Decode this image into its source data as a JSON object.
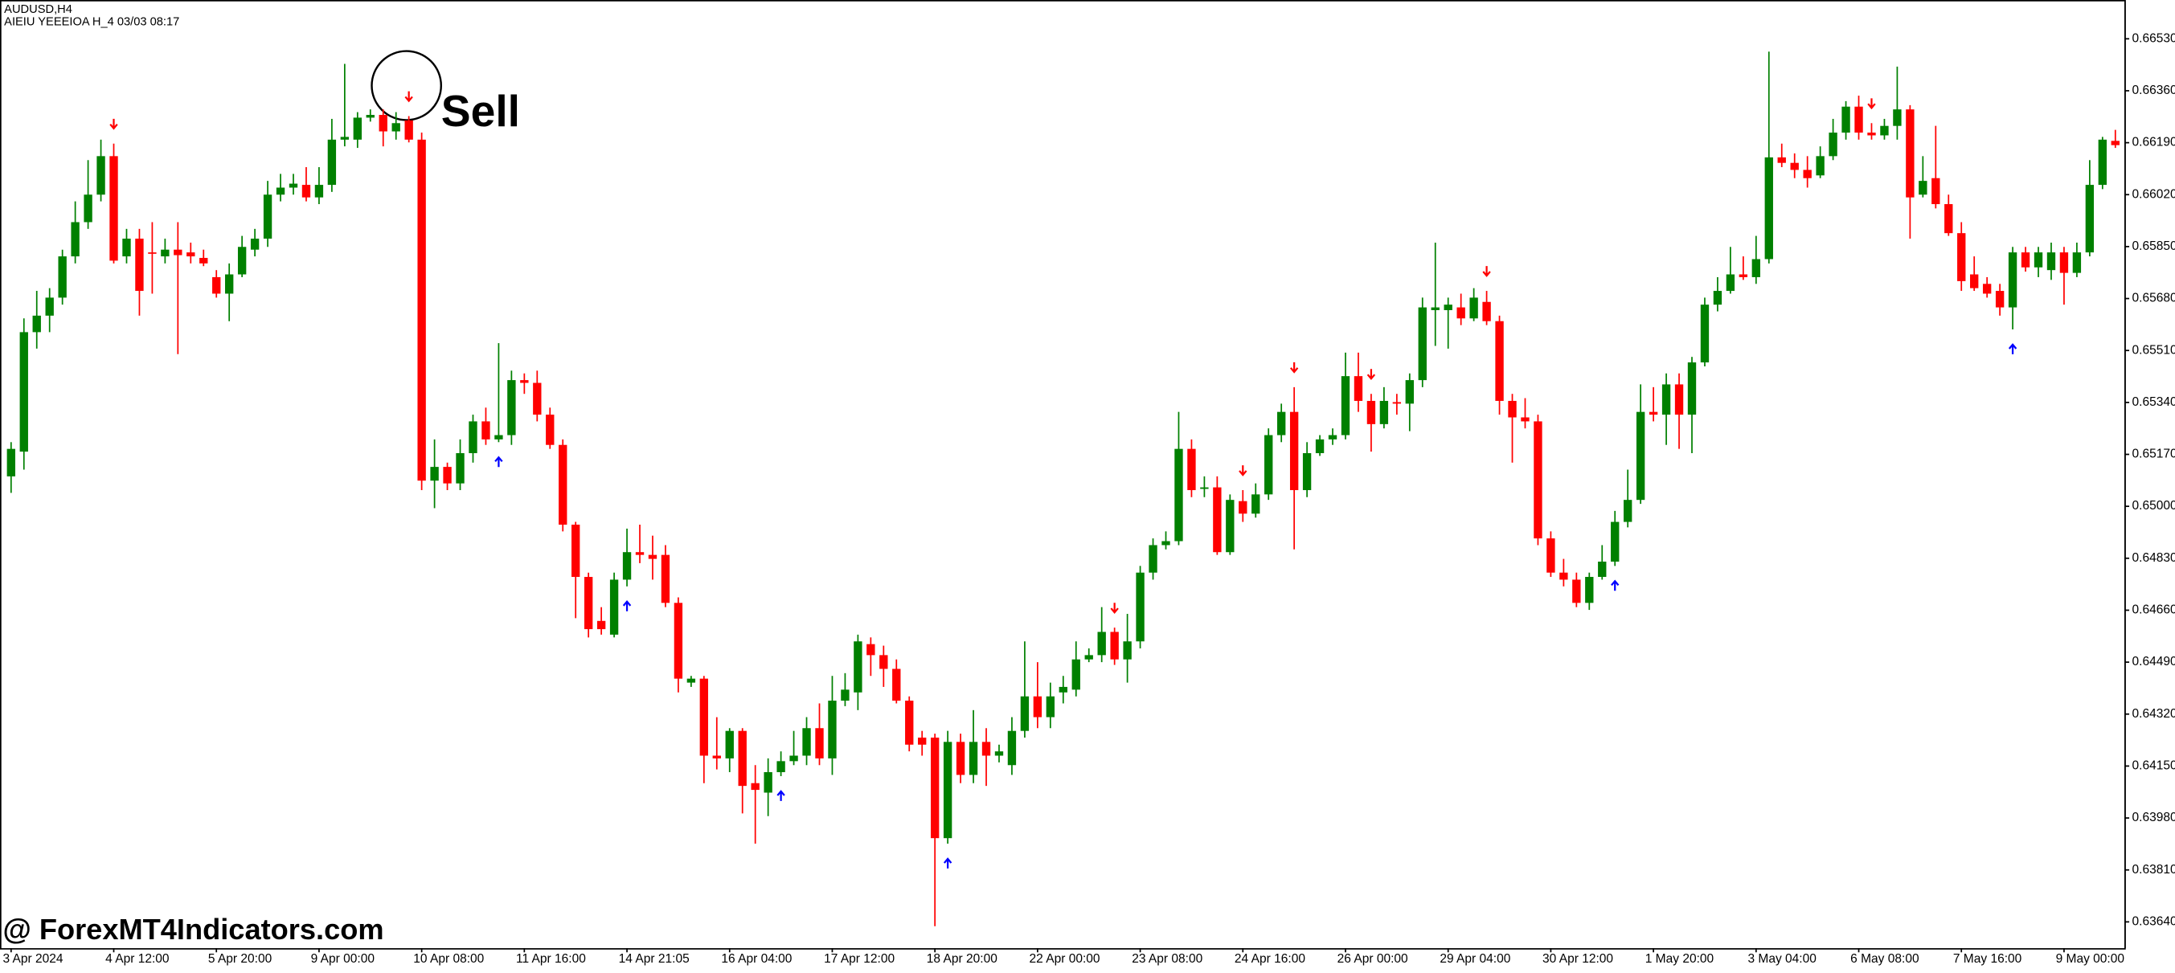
{
  "chart_data": {
    "type": "candlestick",
    "title": "AUDUSD,H4",
    "subtitle": "AIEIU YEEEIOA H_4 03/03 08:17",
    "annotation": "Sell",
    "watermark": "@ ForexMT4Indicators.com",
    "up_color": "#008000",
    "down_color": "#ff0000",
    "sell_color": "#ff0000",
    "buy_color": "#0000ff",
    "ylim": [
      0.63554,
      0.66657
    ],
    "yticks": [
      {
        "value": 0.6653,
        "label": "0.66530"
      },
      {
        "value": 0.6636,
        "label": "0.66360"
      },
      {
        "value": 0.6619,
        "label": "0.66190"
      },
      {
        "value": 0.6602,
        "label": "0.66020"
      },
      {
        "value": 0.6585,
        "label": "0.65850"
      },
      {
        "value": 0.6568,
        "label": "0.65680"
      },
      {
        "value": 0.6551,
        "label": "0.65510"
      },
      {
        "value": 0.6534,
        "label": "0.65340"
      },
      {
        "value": 0.6517,
        "label": "0.65170"
      },
      {
        "value": 0.65,
        "label": "0.65000"
      },
      {
        "value": 0.6483,
        "label": "0.64830"
      },
      {
        "value": 0.6466,
        "label": "0.64660"
      },
      {
        "value": 0.6449,
        "label": "0.64490"
      },
      {
        "value": 0.6432,
        "label": "0.64320"
      },
      {
        "value": 0.6415,
        "label": "0.64150"
      },
      {
        "value": 0.6398,
        "label": "0.63980"
      },
      {
        "value": 0.6381,
        "label": "0.63810"
      },
      {
        "value": 0.6364,
        "label": "0.63640"
      }
    ],
    "categories": [
      "3 Apr 2024",
      null,
      null,
      null,
      null,
      null,
      null,
      null,
      "4 Apr 12:00",
      null,
      null,
      null,
      null,
      null,
      null,
      null,
      "5 Apr 20:00",
      null,
      null,
      null,
      null,
      null,
      null,
      null,
      "9 Apr 00:00",
      null,
      null,
      null,
      null,
      null,
      null,
      null,
      "10 Apr 08:00",
      null,
      null,
      null,
      null,
      null,
      null,
      null,
      "11 Apr 16:00",
      null,
      null,
      null,
      null,
      null,
      null,
      null,
      "14 Apr 21:05",
      null,
      null,
      null,
      null,
      null,
      null,
      null,
      "16 Apr 04:00",
      null,
      null,
      null,
      null,
      null,
      null,
      null,
      "17 Apr 12:00",
      null,
      null,
      null,
      null,
      null,
      null,
      null,
      "18 Apr 20:00",
      null,
      null,
      null,
      null,
      null,
      null,
      null,
      "22 Apr 00:00",
      null,
      null,
      null,
      null,
      null,
      null,
      null,
      "23 Apr 08:00",
      null,
      null,
      null,
      null,
      null,
      null,
      null,
      "24 Apr 16:00",
      null,
      null,
      null,
      null,
      null,
      null,
      null,
      "26 Apr 00:00",
      null,
      null,
      null,
      null,
      null,
      null,
      null,
      "29 Apr 04:00",
      null,
      null,
      null,
      null,
      null,
      null,
      null,
      "30 Apr 12:00",
      null,
      null,
      null,
      null,
      null,
      null,
      null,
      "1 May 20:00",
      null,
      null,
      null,
      null,
      null,
      null,
      null,
      "3 May 04:00",
      null,
      null,
      null,
      null,
      null,
      null,
      null,
      "6 May 08:00",
      null,
      null,
      null,
      null,
      null,
      null,
      null,
      "7 May 16:00",
      null,
      null,
      null,
      null,
      null,
      null,
      null,
      "9 May 00:00",
      null,
      null,
      null,
      null
    ],
    "open": [
      0.65098,
      0.65179,
      0.6557,
      0.65624,
      0.65683,
      0.65818,
      0.6593,
      0.6602,
      0.66146,
      0.65818,
      0.65876,
      0.65831,
      0.65818,
      0.6584,
      0.65831,
      0.65813,
      0.6575,
      0.65696,
      0.65759,
      0.6584,
      0.65876,
      0.6602,
      0.66043,
      0.66052,
      0.66011,
      0.66052,
      0.662,
      0.662,
      0.66272,
      0.66281,
      0.66227,
      0.66263,
      0.662,
      0.65084,
      0.65129,
      0.65075,
      0.65174,
      0.65278,
      0.65219,
      0.65233,
      0.65413,
      0.65404,
      0.653,
      0.65201,
      0.6494,
      0.64769,
      0.64625,
      0.6458,
      0.6476,
      0.6485,
      0.64841,
      0.64841,
      0.64684,
      0.64423,
      0.64436,
      0.64184,
      0.64175,
      0.64265,
      0.64094,
      0.64063,
      0.6413,
      0.64166,
      0.64184,
      0.64274,
      0.64175,
      0.64364,
      0.64391,
      0.64549,
      0.64513,
      0.64468,
      0.64364,
      0.64243,
      0.64243,
      0.63914,
      0.64229,
      0.64121,
      0.64229,
      0.64184,
      0.64153,
      0.64265,
      0.64378,
      0.6431,
      0.64391,
      0.644,
      0.64499,
      0.64513,
      0.64589,
      0.64499,
      0.64558,
      0.64783,
      0.64873,
      0.64886,
      0.65188,
      0.65057,
      0.65062,
      0.6485,
      0.65017,
      0.64976,
      0.65039,
      0.65233,
      0.65309,
      0.65053,
      0.65174,
      0.65219,
      0.65233,
      0.65426,
      0.65345,
      0.65269,
      0.65341,
      0.65336,
      0.65413,
      0.65642,
      0.65642,
      0.65651,
      0.65615,
      0.65669,
      0.65606,
      0.65345,
      0.65291,
      0.65278,
      0.64895,
      0.64783,
      0.6476,
      0.64684,
      0.64769,
      0.64819,
      0.64949,
      0.65021,
      0.65309,
      0.653,
      0.65399,
      0.653,
      0.65471,
      0.6566,
      0.65705,
      0.65759,
      0.6575,
      0.65809,
      0.66142,
      0.66124,
      0.66101,
      0.66083,
      0.66146,
      0.66223,
      0.66308,
      0.66223,
      0.66214,
      0.66245,
      0.66299,
      0.6602,
      0.66074,
      0.65989,
      0.65894,
      0.65759,
      0.65728,
      0.65705,
      0.65651,
      0.65831,
      0.65782,
      0.65773,
      0.65831,
      0.65764,
      0.65831,
      0.66052,
      0.66196
    ],
    "high": [
      0.6521,
      0.65615,
      0.65705,
      0.65714,
      0.6584,
      0.65998,
      0.66133,
      0.662,
      0.66187,
      0.65908,
      0.65908,
      0.6593,
      0.65876,
      0.6593,
      0.65863,
      0.6584,
      0.65773,
      0.65795,
      0.65885,
      0.65908,
      0.66065,
      0.66088,
      0.66088,
      0.6611,
      0.6611,
      0.66268,
      0.66448,
      0.6629,
      0.66299,
      0.66299,
      0.6629,
      0.66277,
      0.66223,
      0.65219,
      0.65143,
      0.65219,
      0.653,
      0.65323,
      0.65534,
      0.65444,
      0.65435,
      0.65444,
      0.65323,
      0.65219,
      0.64949,
      0.64783,
      0.6467,
      0.64783,
      0.64927,
      0.6494,
      0.64904,
      0.64873,
      0.64702,
      0.64445,
      0.64445,
      0.6431,
      0.64274,
      0.64274,
      0.64153,
      0.64175,
      0.64198,
      0.64265,
      0.6431,
      0.64355,
      0.64445,
      0.64454,
      0.6458,
      0.64571,
      0.64544,
      0.64499,
      0.64378,
      0.64265,
      0.64256,
      0.64265,
      0.64256,
      0.64333,
      0.64274,
      0.6422,
      0.6431,
      0.64558,
      0.6449,
      0.64423,
      0.64445,
      0.64558,
      0.64535,
      0.6467,
      0.64603,
      0.64648,
      0.64805,
      0.64895,
      0.64918,
      0.65309,
      0.65219,
      0.65098,
      0.65098,
      0.65039,
      0.65053,
      0.65075,
      0.65255,
      0.65336,
      0.6539,
      0.6521,
      0.65233,
      0.65255,
      0.65503,
      0.65503,
      0.65368,
      0.6539,
      0.65368,
      0.65435,
      0.65683,
      0.65863,
      0.65683,
      0.65696,
      0.65714,
      0.65705,
      0.65624,
      0.65368,
      0.65354,
      0.653,
      0.64918,
      0.64828,
      0.64783,
      0.64783,
      0.64873,
      0.64985,
      0.6512,
      0.65399,
      0.6539,
      0.65435,
      0.65435,
      0.65489,
      0.65683,
      0.6575,
      0.65849,
      0.65818,
      0.65885,
      0.66488,
      0.66187,
      0.66155,
      0.66146,
      0.66178,
      0.66268,
      0.66326,
      0.66344,
      0.66254,
      0.66268,
      0.66439,
      0.66313,
      0.66146,
      0.66245,
      0.6602,
      0.6593,
      0.65818,
      0.6575,
      0.65728,
      0.65849,
      0.65849,
      0.65849,
      0.65863,
      0.65849,
      0.65863,
      0.66133,
      0.66209,
      0.66232
    ],
    "low": [
      0.65044,
      0.6512,
      0.65516,
      0.6557,
      0.6566,
      0.65795,
      0.65908,
      0.65998,
      0.65795,
      0.65795,
      0.65624,
      0.65696,
      0.65795,
      0.65498,
      0.65795,
      0.65786,
      0.65683,
      0.65606,
      0.6575,
      0.65818,
      0.65849,
      0.65998,
      0.6602,
      0.65998,
      0.65989,
      0.66029,
      0.66178,
      0.66173,
      0.66259,
      0.66178,
      0.662,
      0.66191,
      0.65053,
      0.64994,
      0.65053,
      0.65053,
      0.65143,
      0.65201,
      0.6521,
      0.65201,
      0.65368,
      0.65278,
      0.65188,
      0.64918,
      0.64634,
      0.64571,
      0.6458,
      0.64571,
      0.64738,
      0.64814,
      0.6476,
      0.6467,
      0.64391,
      0.64409,
      0.64094,
      0.64139,
      0.6413,
      0.63995,
      0.63896,
      0.63986,
      0.64117,
      0.64153,
      0.64153,
      0.64153,
      0.64121,
      0.64346,
      0.64333,
      0.64445,
      0.64409,
      0.64355,
      0.64198,
      0.64184,
      0.63626,
      0.63896,
      0.64094,
      0.64094,
      0.64085,
      0.64162,
      0.64121,
      0.64243,
      0.64274,
      0.64274,
      0.64355,
      0.64378,
      0.6449,
      0.6449,
      0.64481,
      0.64423,
      0.64535,
      0.6476,
      0.64859,
      0.64873,
      0.6503,
      0.6503,
      0.64841,
      0.64841,
      0.64949,
      0.64963,
      0.65021,
      0.6521,
      0.64859,
      0.6503,
      0.65165,
      0.65201,
      0.65219,
      0.65309,
      0.65179,
      0.65255,
      0.653,
      0.65246,
      0.6539,
      0.65525,
      0.65516,
      0.65593,
      0.65606,
      0.65593,
      0.653,
      0.65143,
      0.65255,
      0.64873,
      0.64769,
      0.64738,
      0.6467,
      0.64661,
      0.6476,
      0.64805,
      0.64931,
      0.65008,
      0.65278,
      0.65201,
      0.65188,
      0.65174,
      0.65458,
      0.65638,
      0.65696,
      0.65741,
      0.65728,
      0.65795,
      0.6611,
      0.66074,
      0.66043,
      0.66074,
      0.66133,
      0.662,
      0.662,
      0.662,
      0.662,
      0.662,
      0.65876,
      0.66011,
      0.65975,
      0.65885,
      0.65705,
      0.65705,
      0.65683,
      0.65624,
      0.65579,
      0.65768,
      0.6575,
      0.65741,
      0.6566,
      0.6575,
      0.65818,
      0.66038,
      0.66173
    ],
    "close": [
      0.65188,
      0.6557,
      0.65624,
      0.65683,
      0.65818,
      0.6593,
      0.6602,
      0.66146,
      0.65804,
      0.65876,
      0.65705,
      0.65827,
      0.6584,
      0.65822,
      0.65818,
      0.65795,
      0.65696,
      0.65759,
      0.65849,
      0.65876,
      0.6602,
      0.66043,
      0.66056,
      0.66011,
      0.66052,
      0.662,
      0.66209,
      0.66272,
      0.66281,
      0.66227,
      0.66254,
      0.662,
      0.65084,
      0.65129,
      0.65075,
      0.65174,
      0.65278,
      0.65219,
      0.65233,
      0.65413,
      0.65404,
      0.653,
      0.65201,
      0.6494,
      0.64769,
      0.64598,
      0.64598,
      0.6476,
      0.6485,
      0.64841,
      0.64828,
      0.64684,
      0.64436,
      0.64436,
      0.64184,
      0.64175,
      0.64265,
      0.64085,
      0.64072,
      0.6413,
      0.64166,
      0.64184,
      0.64274,
      0.64175,
      0.64364,
      0.644,
      0.64558,
      0.64513,
      0.64468,
      0.64364,
      0.6422,
      0.6422,
      0.63914,
      0.64229,
      0.64121,
      0.64229,
      0.64184,
      0.64198,
      0.64265,
      0.64378,
      0.6431,
      0.64378,
      0.64409,
      0.64499,
      0.64513,
      0.64589,
      0.64499,
      0.64558,
      0.64783,
      0.64873,
      0.64886,
      0.65188,
      0.65053,
      0.65062,
      0.6485,
      0.65021,
      0.64976,
      0.65039,
      0.65233,
      0.65309,
      0.65053,
      0.65174,
      0.65219,
      0.65233,
      0.65426,
      0.65345,
      0.65269,
      0.65345,
      0.65336,
      0.65413,
      0.65651,
      0.65651,
      0.6566,
      0.65615,
      0.65683,
      0.65606,
      0.65345,
      0.65291,
      0.65278,
      0.64895,
      0.64783,
      0.6476,
      0.64684,
      0.64769,
      0.64819,
      0.64949,
      0.65021,
      0.65309,
      0.653,
      0.65399,
      0.653,
      0.65471,
      0.6566,
      0.65705,
      0.65759,
      0.6575,
      0.65809,
      0.66142,
      0.66124,
      0.66101,
      0.66074,
      0.66146,
      0.66223,
      0.66308,
      0.66223,
      0.66214,
      0.66245,
      0.66299,
      0.66011,
      0.66065,
      0.65989,
      0.65894,
      0.65737,
      0.65714,
      0.65696,
      0.65651,
      0.65831,
      0.65782,
      0.65831,
      0.65831,
      0.65764,
      0.65831,
      0.66052,
      0.662,
      0.66182
    ],
    "sell_signals": [
      8,
      31,
      86,
      96,
      100,
      106,
      115,
      145
    ],
    "buy_signals": [
      38,
      48,
      60,
      73,
      125,
      156
    ]
  }
}
